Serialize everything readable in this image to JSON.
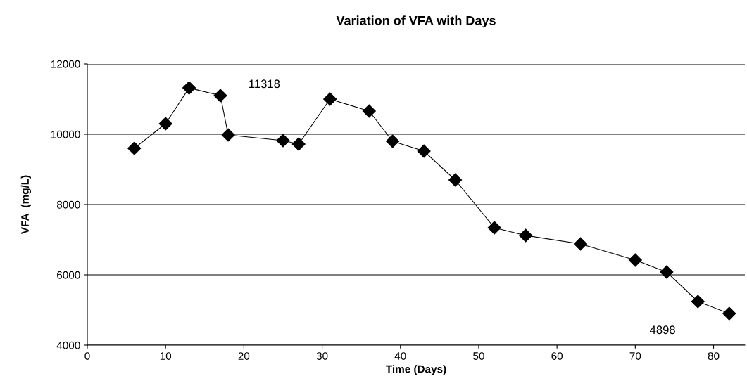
{
  "chart_data": {
    "type": "line",
    "title": "Variation of VFA with Days",
    "xlabel": "Time (Days)",
    "ylabel": "VFA  (mg/L)",
    "series": [
      {
        "color": "#000000",
        "x": [
          6,
          10,
          13,
          17,
          18,
          25,
          27,
          31,
          36,
          39,
          43,
          47,
          52,
          56,
          63,
          70,
          74,
          78,
          82
        ],
        "values": [
          9600,
          10300,
          11318,
          11100,
          9980,
          9820,
          9720,
          11000,
          10660,
          9800,
          9520,
          8700,
          7340,
          7120,
          6880,
          6420,
          6080,
          5240,
          4898
        ]
      }
    ],
    "xlim": [
      0,
      84
    ],
    "xticks": [
      0,
      10,
      20,
      30,
      40,
      50,
      60,
      70,
      80
    ],
    "ylim": [
      4000,
      12000
    ],
    "yticks": [
      4000,
      6000,
      8000,
      10000,
      12000
    ],
    "grid": "y",
    "marker": "diamond",
    "line_style": "solid",
    "legend": false,
    "annotations": [
      "11318",
      "4898"
    ]
  }
}
